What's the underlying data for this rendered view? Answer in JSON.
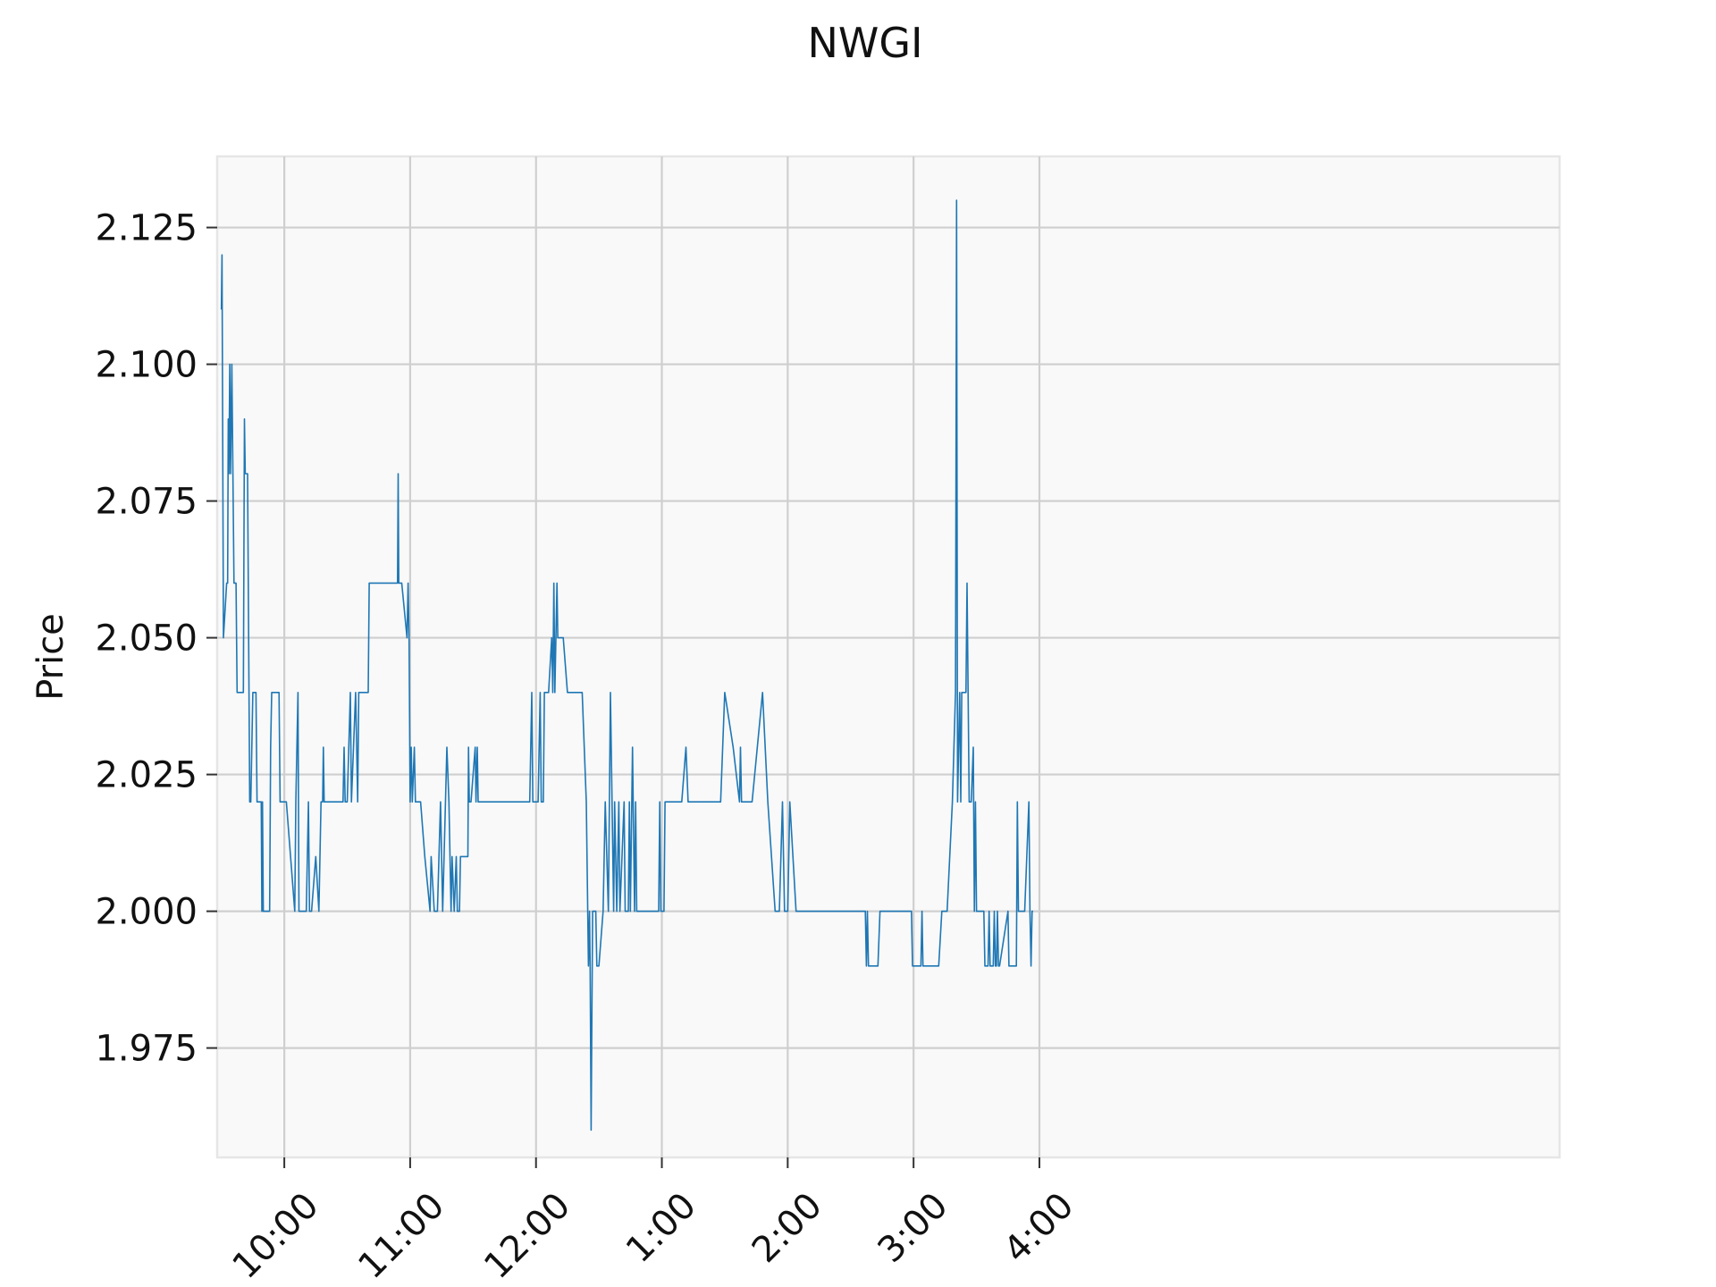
{
  "chart_data": {
    "type": "line",
    "title": "NWGI",
    "ylabel": "Price",
    "xlabel": "",
    "ylim": [
      1.955,
      2.138
    ],
    "xlim_minutes": [
      568,
      1208
    ],
    "grid": true,
    "legend": "none",
    "colors": {
      "series": "#1f77b4",
      "plot_bg": "#f9f9f9",
      "grid": "#cfcfcf",
      "frame": "#e6e6e6"
    },
    "x_ticks": [
      {
        "minute": 600,
        "label": "10:00"
      },
      {
        "minute": 660,
        "label": "11:00"
      },
      {
        "minute": 720,
        "label": "12:00"
      },
      {
        "minute": 780,
        "label": "1:00"
      },
      {
        "minute": 840,
        "label": "2:00"
      },
      {
        "minute": 900,
        "label": "3:00"
      },
      {
        "minute": 960,
        "label": "4:00"
      }
    ],
    "y_ticks": [
      {
        "value": 1.975,
        "label": "1.975"
      },
      {
        "value": 2.0,
        "label": "2.000"
      },
      {
        "value": 2.025,
        "label": "2.025"
      },
      {
        "value": 2.05,
        "label": "2.050"
      },
      {
        "value": 2.075,
        "label": "2.075"
      },
      {
        "value": 2.1,
        "label": "2.100"
      },
      {
        "value": 2.125,
        "label": "2.125"
      }
    ],
    "series": [
      {
        "points": [
          [
            570.0,
            2.11
          ],
          [
            570.3,
            2.12
          ],
          [
            570.6,
            2.09
          ],
          [
            571.0,
            2.05
          ],
          [
            572.5,
            2.06
          ],
          [
            573.0,
            2.06
          ],
          [
            573.3,
            2.09
          ],
          [
            573.6,
            2.08
          ],
          [
            574.0,
            2.1
          ],
          [
            574.4,
            2.08
          ],
          [
            575.0,
            2.1
          ],
          [
            575.5,
            2.08
          ],
          [
            576.0,
            2.06
          ],
          [
            577.0,
            2.06
          ],
          [
            577.5,
            2.04
          ],
          [
            580.5,
            2.04
          ],
          [
            581.0,
            2.09
          ],
          [
            581.4,
            2.08
          ],
          [
            582.5,
            2.08
          ],
          [
            583.5,
            2.02
          ],
          [
            584.0,
            2.02
          ],
          [
            585.0,
            2.04
          ],
          [
            586.5,
            2.04
          ],
          [
            587.0,
            2.02
          ],
          [
            589.0,
            2.02
          ],
          [
            589.3,
            2.0
          ],
          [
            589.6,
            2.02
          ],
          [
            590.0,
            2.0
          ],
          [
            593.0,
            2.0
          ],
          [
            593.5,
            2.03
          ],
          [
            594.0,
            2.04
          ],
          [
            597.5,
            2.04
          ],
          [
            598.0,
            2.02
          ],
          [
            601.0,
            2.02
          ],
          [
            605.0,
            2.0
          ],
          [
            605.5,
            2.02
          ],
          [
            606.5,
            2.04
          ],
          [
            607.0,
            2.0
          ],
          [
            610.5,
            2.0
          ],
          [
            611.5,
            2.02
          ],
          [
            612.0,
            2.0
          ],
          [
            613.0,
            2.0
          ],
          [
            615.0,
            2.01
          ],
          [
            616.5,
            2.0
          ],
          [
            617.5,
            2.02
          ],
          [
            618.3,
            2.02
          ],
          [
            618.6,
            2.03
          ],
          [
            619.0,
            2.02
          ],
          [
            628.0,
            2.02
          ],
          [
            628.5,
            2.03
          ],
          [
            629.0,
            2.02
          ],
          [
            630.0,
            2.02
          ],
          [
            631.5,
            2.04
          ],
          [
            632.0,
            2.02
          ],
          [
            634.0,
            2.04
          ],
          [
            635.0,
            2.02
          ],
          [
            635.5,
            2.04
          ],
          [
            640.0,
            2.04
          ],
          [
            640.5,
            2.06
          ],
          [
            654.0,
            2.06
          ],
          [
            654.3,
            2.08
          ],
          [
            654.6,
            2.06
          ],
          [
            655.0,
            2.06
          ],
          [
            656.0,
            2.06
          ],
          [
            658.5,
            2.05
          ],
          [
            659.0,
            2.06
          ],
          [
            659.5,
            2.05
          ],
          [
            660.0,
            2.02
          ],
          [
            660.5,
            2.03
          ],
          [
            661.0,
            2.02
          ],
          [
            662.0,
            2.03
          ],
          [
            662.5,
            2.02
          ],
          [
            665.0,
            2.02
          ],
          [
            667.0,
            2.01
          ],
          [
            669.5,
            2.0
          ],
          [
            670.0,
            2.01
          ],
          [
            671.5,
            2.0
          ],
          [
            673.0,
            2.0
          ],
          [
            674.5,
            2.02
          ],
          [
            675.5,
            2.0
          ],
          [
            677.5,
            2.03
          ],
          [
            678.5,
            2.02
          ],
          [
            679.5,
            2.0
          ],
          [
            680.0,
            2.01
          ],
          [
            681.0,
            2.0
          ],
          [
            682.0,
            2.01
          ],
          [
            682.5,
            2.0
          ],
          [
            683.5,
            2.0
          ],
          [
            684.0,
            2.01
          ],
          [
            687.5,
            2.01
          ],
          [
            687.8,
            2.03
          ],
          [
            688.2,
            2.02
          ],
          [
            689.0,
            2.02
          ],
          [
            691.0,
            2.03
          ],
          [
            691.4,
            2.02
          ],
          [
            692.0,
            2.03
          ],
          [
            692.4,
            2.02
          ],
          [
            717.0,
            2.02
          ],
          [
            718.0,
            2.04
          ],
          [
            718.5,
            2.02
          ],
          [
            721.0,
            2.02
          ],
          [
            722.0,
            2.04
          ],
          [
            722.5,
            2.02
          ],
          [
            723.5,
            2.02
          ],
          [
            724.0,
            2.04
          ],
          [
            726.0,
            2.04
          ],
          [
            727.5,
            2.05
          ],
          [
            728.0,
            2.04
          ],
          [
            728.5,
            2.06
          ],
          [
            729.0,
            2.04
          ],
          [
            729.5,
            2.05
          ],
          [
            730.0,
            2.06
          ],
          [
            730.4,
            2.05
          ],
          [
            733.0,
            2.05
          ],
          [
            735.0,
            2.04
          ],
          [
            742.0,
            2.04
          ],
          [
            744.0,
            2.02
          ],
          [
            745.0,
            1.99
          ],
          [
            745.5,
            2.0
          ],
          [
            745.8,
            1.99
          ],
          [
            746.3,
            1.96
          ],
          [
            746.6,
            1.98
          ],
          [
            747.0,
            2.0
          ],
          [
            748.5,
            2.0
          ],
          [
            749.0,
            1.99
          ],
          [
            750.0,
            1.99
          ],
          [
            752.0,
            2.0
          ],
          [
            753.0,
            2.02
          ],
          [
            754.5,
            2.0
          ],
          [
            755.5,
            2.04
          ],
          [
            757.0,
            2.0
          ],
          [
            757.5,
            2.02
          ],
          [
            758.5,
            2.0
          ],
          [
            759.5,
            2.02
          ],
          [
            760.0,
            2.0
          ],
          [
            762.0,
            2.02
          ],
          [
            762.5,
            2.0
          ],
          [
            764.0,
            2.0
          ],
          [
            764.5,
            2.02
          ],
          [
            765.0,
            2.0
          ],
          [
            766.0,
            2.03
          ],
          [
            767.0,
            2.0
          ],
          [
            767.5,
            2.02
          ],
          [
            768.0,
            2.0
          ],
          [
            778.5,
            2.0
          ],
          [
            779.0,
            2.02
          ],
          [
            779.5,
            2.0
          ],
          [
            781.0,
            2.0
          ],
          [
            781.5,
            2.02
          ],
          [
            789.5,
            2.02
          ],
          [
            791.5,
            2.03
          ],
          [
            792.5,
            2.02
          ],
          [
            808.0,
            2.02
          ],
          [
            809.0,
            2.03
          ],
          [
            810.0,
            2.04
          ],
          [
            814.0,
            2.03
          ],
          [
            817.0,
            2.02
          ],
          [
            817.5,
            2.03
          ],
          [
            818.0,
            2.02
          ],
          [
            823.0,
            2.02
          ],
          [
            828.0,
            2.04
          ],
          [
            830.5,
            2.02
          ],
          [
            834.0,
            2.0
          ],
          [
            836.0,
            2.0
          ],
          [
            837.5,
            2.02
          ],
          [
            838.5,
            2.0
          ],
          [
            840.0,
            2.0
          ],
          [
            841.0,
            2.02
          ],
          [
            844.0,
            2.0
          ],
          [
            877.0,
            2.0
          ],
          [
            877.5,
            1.99
          ],
          [
            878.0,
            2.0
          ],
          [
            878.5,
            1.99
          ],
          [
            883.0,
            1.99
          ],
          [
            884.0,
            2.0
          ],
          [
            899.0,
            2.0
          ],
          [
            899.5,
            1.99
          ],
          [
            903.5,
            1.99
          ],
          [
            904.0,
            2.0
          ],
          [
            904.5,
            1.99
          ],
          [
            912.0,
            1.99
          ],
          [
            913.5,
            2.0
          ],
          [
            916.0,
            2.0
          ],
          [
            918.5,
            2.02
          ],
          [
            920.0,
            2.04
          ],
          [
            920.5,
            2.13
          ],
          [
            921.0,
            2.02
          ],
          [
            922.0,
            2.04
          ],
          [
            922.5,
            2.02
          ],
          [
            923.0,
            2.04
          ],
          [
            925.0,
            2.04
          ],
          [
            925.5,
            2.06
          ],
          [
            926.0,
            2.04
          ],
          [
            926.5,
            2.02
          ],
          [
            927.5,
            2.02
          ],
          [
            928.5,
            2.03
          ],
          [
            929.0,
            2.0
          ],
          [
            929.5,
            2.02
          ],
          [
            930.0,
            2.0
          ],
          [
            933.5,
            2.0
          ],
          [
            934.0,
            1.99
          ],
          [
            935.5,
            1.99
          ],
          [
            936.0,
            2.0
          ],
          [
            936.5,
            1.99
          ],
          [
            938.0,
            1.99
          ],
          [
            938.5,
            2.0
          ],
          [
            939.0,
            1.99
          ],
          [
            939.5,
            1.99
          ],
          [
            940.0,
            2.0
          ],
          [
            940.5,
            1.99
          ],
          [
            941.0,
            1.99
          ],
          [
            945.0,
            2.0
          ],
          [
            945.5,
            1.99
          ],
          [
            949.0,
            1.99
          ],
          [
            949.5,
            2.02
          ],
          [
            950.0,
            2.0
          ],
          [
            953.0,
            2.0
          ],
          [
            955.0,
            2.02
          ],
          [
            955.5,
            2.0
          ],
          [
            956.0,
            1.99
          ],
          [
            956.5,
            2.0
          ],
          [
            957.0,
            2.0
          ]
        ]
      }
    ]
  }
}
